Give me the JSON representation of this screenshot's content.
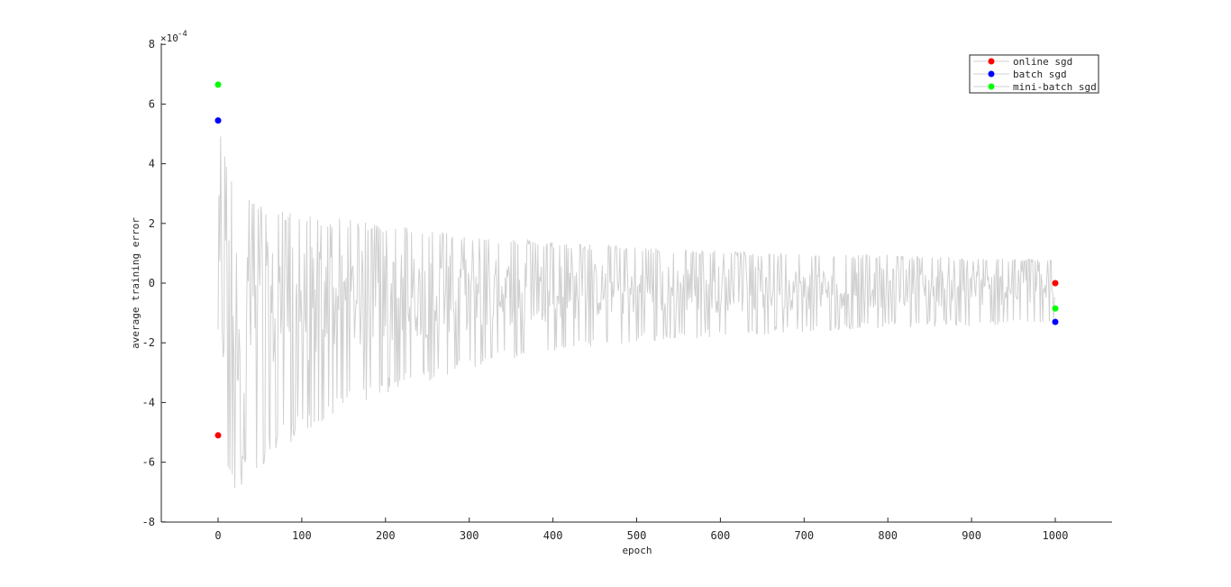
{
  "chart_data": {
    "type": "line",
    "title": "",
    "xlabel": "epoch",
    "ylabel": "average training error",
    "y_exponent": "× 10^-4",
    "y_exponent_base": "×10",
    "y_exponent_power": "-4",
    "xlim": [
      -67,
      1067
    ],
    "ylim": [
      -0.0008,
      0.0008
    ],
    "x_ticks": [
      0,
      100,
      200,
      300,
      400,
      500,
      600,
      700,
      800,
      900,
      1000
    ],
    "x_tick_labels": [
      "0",
      "100",
      "200",
      "300",
      "400",
      "500",
      "600",
      "700",
      "800",
      "900",
      "1000"
    ],
    "y_ticks": [
      -0.0008,
      -0.0006,
      -0.0004,
      -0.0002,
      0,
      0.0002,
      0.0004,
      0.0006,
      0.0008
    ],
    "y_tick_labels": [
      "-8",
      "-6",
      "-4",
      "-2",
      "0",
      "2",
      "4",
      "6",
      "8"
    ],
    "grid": false,
    "legend_position": "top-right",
    "line_color": "#d0d0d0",
    "noisy_trace": {
      "description_values": "oscillating error trace bounded by a decaying envelope",
      "x_start": 0,
      "x_end": 1000,
      "upper_envelope": [
        [
          0,
          0.00056
        ],
        [
          5,
          0.00046
        ],
        [
          20,
          0.00035
        ],
        [
          50,
          0.00026
        ],
        [
          100,
          0.00023
        ],
        [
          200,
          0.0002
        ],
        [
          300,
          0.00016
        ],
        [
          400,
          0.00014
        ],
        [
          500,
          0.00012
        ],
        [
          600,
          0.00011
        ],
        [
          700,
          0.0001
        ],
        [
          800,
          9.5e-05
        ],
        [
          900,
          8.5e-05
        ],
        [
          1000,
          8e-05
        ]
      ],
      "lower_envelope": [
        [
          0,
          -0.00065
        ],
        [
          20,
          -0.0007
        ],
        [
          50,
          -0.00063
        ],
        [
          100,
          -0.0005
        ],
        [
          200,
          -0.00037
        ],
        [
          300,
          -0.00029
        ],
        [
          400,
          -0.00023
        ],
        [
          500,
          -0.0002
        ],
        [
          600,
          -0.00018
        ],
        [
          700,
          -0.000165
        ],
        [
          800,
          -0.00015
        ],
        [
          900,
          -0.000145
        ],
        [
          1000,
          -0.000135
        ]
      ]
    },
    "series": [
      {
        "name": "online sgd",
        "color": "#ff0000",
        "points": [
          [
            0,
            -0.00051
          ],
          [
            1000,
            0.0
          ]
        ]
      },
      {
        "name": "batch sgd",
        "color": "#0000ff",
        "points": [
          [
            0,
            0.000545
          ],
          [
            1000,
            -0.00013
          ]
        ]
      },
      {
        "name": "mini-batch sgd",
        "color": "#00ff00",
        "points": [
          [
            0,
            0.000665
          ],
          [
            1000,
            -8.5e-05
          ]
        ]
      }
    ]
  }
}
